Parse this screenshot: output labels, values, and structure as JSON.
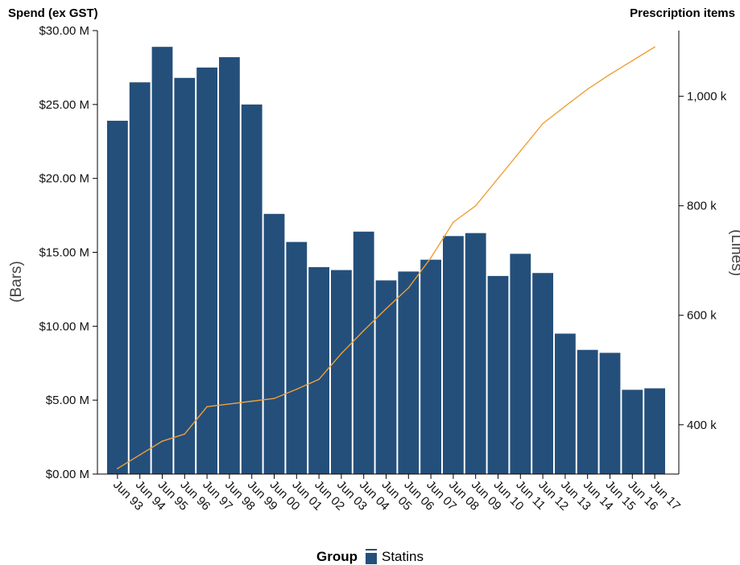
{
  "chart_data": {
    "type": "bar",
    "y_left_title": "Spend (ex GST)",
    "y_right_title": "Prescription items",
    "y_left_label": "(Bars)",
    "y_right_label": "(Lines)",
    "legend_title": "Group",
    "categories": [
      "Jun 93",
      "Jun 94",
      "Jun 95",
      "Jun 96",
      "Jun 97",
      "Jun 98",
      "Jun 99",
      "Jun 00",
      "Jun 01",
      "Jun 02",
      "Jun 03",
      "Jun 04",
      "Jun 05",
      "Jun 06",
      "Jun 07",
      "Jun 08",
      "Jun 09",
      "Jun 10",
      "Jun 11",
      "Jun 12",
      "Jun 13",
      "Jun 14",
      "Jun 15",
      "Jun 16",
      "Jun 17"
    ],
    "series": [
      {
        "name": "Statins",
        "type": "bar",
        "axis": "left",
        "color": "#244f7a",
        "values": [
          23.9,
          26.5,
          28.9,
          26.8,
          27.5,
          28.2,
          25.0,
          17.6,
          15.7,
          14.0,
          13.8,
          16.4,
          13.1,
          13.7,
          14.5,
          16.1,
          16.3,
          13.4,
          14.9,
          13.6,
          9.5,
          8.4,
          8.2,
          5.7,
          5.8
        ]
      },
      {
        "type": "line",
        "axis": "right",
        "color": "#f0a03a",
        "values": [
          320,
          345,
          370,
          383,
          433,
          438,
          443,
          448,
          465,
          483,
          530,
          572,
          612,
          650,
          705,
          770,
          800,
          850,
          900,
          950,
          982,
          1013,
          1040,
          1065,
          1090
        ]
      }
    ],
    "y_left": {
      "ylim": [
        0,
        30
      ],
      "ticks": [
        0,
        5,
        10,
        15,
        20,
        25,
        30
      ],
      "tick_labels": [
        "$0.00 M",
        "$5.00 M",
        "$10.00 M",
        "$15.00 M",
        "$20.00 M",
        "$25.00 M",
        "$30.00 M"
      ]
    },
    "y_right": {
      "ylim": [
        310,
        1120
      ],
      "ticks": [
        400,
        600,
        800,
        1000
      ],
      "tick_labels": [
        "400 k",
        "600 k",
        "800 k",
        "1,000 k"
      ]
    },
    "grid": false,
    "legend_position": "bottom-center"
  }
}
